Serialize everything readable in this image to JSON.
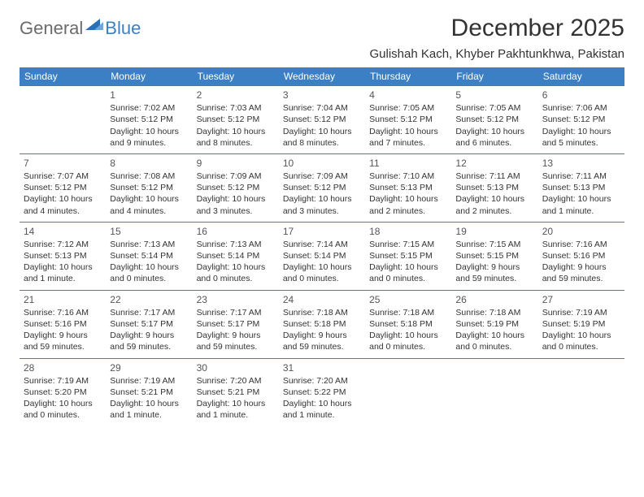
{
  "logo": {
    "general": "General",
    "blue": "Blue"
  },
  "title": "December 2025",
  "location": "Gulishah Kach, Khyber Pakhtunkhwa, Pakistan",
  "colors": {
    "header_bg": "#3b7fc4",
    "header_text": "#ffffff",
    "row_border": "#3b7fc4",
    "body_text": "#333333",
    "logo_gray": "#6b6b6b",
    "logo_blue": "#3b7fc4"
  },
  "weekdays": [
    "Sunday",
    "Monday",
    "Tuesday",
    "Wednesday",
    "Thursday",
    "Friday",
    "Saturday"
  ],
  "weeks": [
    [
      null,
      {
        "n": "1",
        "sr": "Sunrise: 7:02 AM",
        "ss": "Sunset: 5:12 PM",
        "dl1": "Daylight: 10 hours",
        "dl2": "and 9 minutes."
      },
      {
        "n": "2",
        "sr": "Sunrise: 7:03 AM",
        "ss": "Sunset: 5:12 PM",
        "dl1": "Daylight: 10 hours",
        "dl2": "and 8 minutes."
      },
      {
        "n": "3",
        "sr": "Sunrise: 7:04 AM",
        "ss": "Sunset: 5:12 PM",
        "dl1": "Daylight: 10 hours",
        "dl2": "and 8 minutes."
      },
      {
        "n": "4",
        "sr": "Sunrise: 7:05 AM",
        "ss": "Sunset: 5:12 PM",
        "dl1": "Daylight: 10 hours",
        "dl2": "and 7 minutes."
      },
      {
        "n": "5",
        "sr": "Sunrise: 7:05 AM",
        "ss": "Sunset: 5:12 PM",
        "dl1": "Daylight: 10 hours",
        "dl2": "and 6 minutes."
      },
      {
        "n": "6",
        "sr": "Sunrise: 7:06 AM",
        "ss": "Sunset: 5:12 PM",
        "dl1": "Daylight: 10 hours",
        "dl2": "and 5 minutes."
      }
    ],
    [
      {
        "n": "7",
        "sr": "Sunrise: 7:07 AM",
        "ss": "Sunset: 5:12 PM",
        "dl1": "Daylight: 10 hours",
        "dl2": "and 4 minutes."
      },
      {
        "n": "8",
        "sr": "Sunrise: 7:08 AM",
        "ss": "Sunset: 5:12 PM",
        "dl1": "Daylight: 10 hours",
        "dl2": "and 4 minutes."
      },
      {
        "n": "9",
        "sr": "Sunrise: 7:09 AM",
        "ss": "Sunset: 5:12 PM",
        "dl1": "Daylight: 10 hours",
        "dl2": "and 3 minutes."
      },
      {
        "n": "10",
        "sr": "Sunrise: 7:09 AM",
        "ss": "Sunset: 5:12 PM",
        "dl1": "Daylight: 10 hours",
        "dl2": "and 3 minutes."
      },
      {
        "n": "11",
        "sr": "Sunrise: 7:10 AM",
        "ss": "Sunset: 5:13 PM",
        "dl1": "Daylight: 10 hours",
        "dl2": "and 2 minutes."
      },
      {
        "n": "12",
        "sr": "Sunrise: 7:11 AM",
        "ss": "Sunset: 5:13 PM",
        "dl1": "Daylight: 10 hours",
        "dl2": "and 2 minutes."
      },
      {
        "n": "13",
        "sr": "Sunrise: 7:11 AM",
        "ss": "Sunset: 5:13 PM",
        "dl1": "Daylight: 10 hours",
        "dl2": "and 1 minute."
      }
    ],
    [
      {
        "n": "14",
        "sr": "Sunrise: 7:12 AM",
        "ss": "Sunset: 5:13 PM",
        "dl1": "Daylight: 10 hours",
        "dl2": "and 1 minute."
      },
      {
        "n": "15",
        "sr": "Sunrise: 7:13 AM",
        "ss": "Sunset: 5:14 PM",
        "dl1": "Daylight: 10 hours",
        "dl2": "and 0 minutes."
      },
      {
        "n": "16",
        "sr": "Sunrise: 7:13 AM",
        "ss": "Sunset: 5:14 PM",
        "dl1": "Daylight: 10 hours",
        "dl2": "and 0 minutes."
      },
      {
        "n": "17",
        "sr": "Sunrise: 7:14 AM",
        "ss": "Sunset: 5:14 PM",
        "dl1": "Daylight: 10 hours",
        "dl2": "and 0 minutes."
      },
      {
        "n": "18",
        "sr": "Sunrise: 7:15 AM",
        "ss": "Sunset: 5:15 PM",
        "dl1": "Daylight: 10 hours",
        "dl2": "and 0 minutes."
      },
      {
        "n": "19",
        "sr": "Sunrise: 7:15 AM",
        "ss": "Sunset: 5:15 PM",
        "dl1": "Daylight: 9 hours",
        "dl2": "and 59 minutes."
      },
      {
        "n": "20",
        "sr": "Sunrise: 7:16 AM",
        "ss": "Sunset: 5:16 PM",
        "dl1": "Daylight: 9 hours",
        "dl2": "and 59 minutes."
      }
    ],
    [
      {
        "n": "21",
        "sr": "Sunrise: 7:16 AM",
        "ss": "Sunset: 5:16 PM",
        "dl1": "Daylight: 9 hours",
        "dl2": "and 59 minutes."
      },
      {
        "n": "22",
        "sr": "Sunrise: 7:17 AM",
        "ss": "Sunset: 5:17 PM",
        "dl1": "Daylight: 9 hours",
        "dl2": "and 59 minutes."
      },
      {
        "n": "23",
        "sr": "Sunrise: 7:17 AM",
        "ss": "Sunset: 5:17 PM",
        "dl1": "Daylight: 9 hours",
        "dl2": "and 59 minutes."
      },
      {
        "n": "24",
        "sr": "Sunrise: 7:18 AM",
        "ss": "Sunset: 5:18 PM",
        "dl1": "Daylight: 9 hours",
        "dl2": "and 59 minutes."
      },
      {
        "n": "25",
        "sr": "Sunrise: 7:18 AM",
        "ss": "Sunset: 5:18 PM",
        "dl1": "Daylight: 10 hours",
        "dl2": "and 0 minutes."
      },
      {
        "n": "26",
        "sr": "Sunrise: 7:18 AM",
        "ss": "Sunset: 5:19 PM",
        "dl1": "Daylight: 10 hours",
        "dl2": "and 0 minutes."
      },
      {
        "n": "27",
        "sr": "Sunrise: 7:19 AM",
        "ss": "Sunset: 5:19 PM",
        "dl1": "Daylight: 10 hours",
        "dl2": "and 0 minutes."
      }
    ],
    [
      {
        "n": "28",
        "sr": "Sunrise: 7:19 AM",
        "ss": "Sunset: 5:20 PM",
        "dl1": "Daylight: 10 hours",
        "dl2": "and 0 minutes."
      },
      {
        "n": "29",
        "sr": "Sunrise: 7:19 AM",
        "ss": "Sunset: 5:21 PM",
        "dl1": "Daylight: 10 hours",
        "dl2": "and 1 minute."
      },
      {
        "n": "30",
        "sr": "Sunrise: 7:20 AM",
        "ss": "Sunset: 5:21 PM",
        "dl1": "Daylight: 10 hours",
        "dl2": "and 1 minute."
      },
      {
        "n": "31",
        "sr": "Sunrise: 7:20 AM",
        "ss": "Sunset: 5:22 PM",
        "dl1": "Daylight: 10 hours",
        "dl2": "and 1 minute."
      },
      null,
      null,
      null
    ]
  ]
}
